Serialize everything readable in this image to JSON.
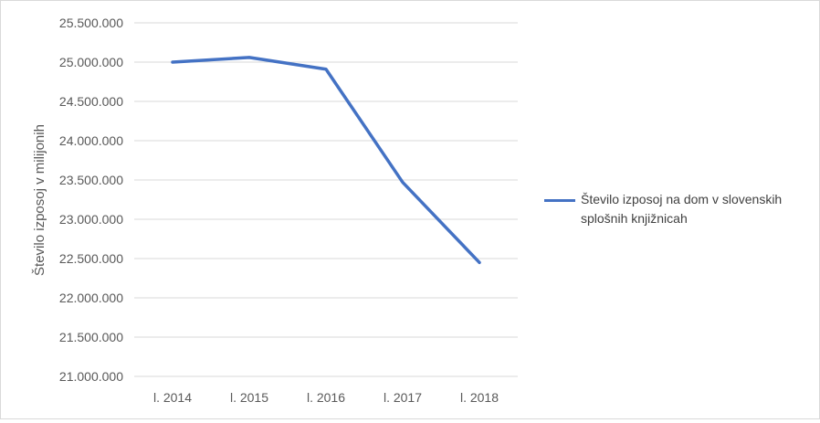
{
  "chart_data": {
    "type": "line",
    "title": "",
    "xlabel": "",
    "ylabel": "Število izposoj v milijonih",
    "categories": [
      "l. 2014",
      "l. 2015",
      "l. 2016",
      "l. 2017",
      "l. 2018"
    ],
    "series": [
      {
        "name": "Število izposoj na dom v slovenskih splošnih knjižnicah",
        "values": [
          25000000,
          25060000,
          24910000,
          23470000,
          22450000
        ],
        "color": "#4472c4"
      }
    ],
    "ylim": [
      21000000,
      25500000
    ],
    "ytick_values": [
      21000000,
      21500000,
      22000000,
      22500000,
      23000000,
      23500000,
      24000000,
      24500000,
      25000000,
      25500000
    ],
    "ytick_labels": [
      "21.000.000",
      "21.500.000",
      "22.000.000",
      "22.500.000",
      "23.000.000",
      "23.500.000",
      "24.000.000",
      "24.500.000",
      "25.000.000",
      "25.500.000"
    ],
    "grid": true,
    "legend_position": "right"
  }
}
